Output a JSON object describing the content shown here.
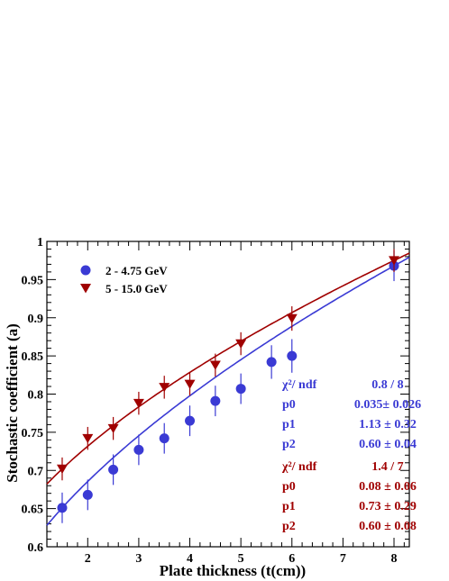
{
  "colors": {
    "series1": "#3a3ad4",
    "series2": "#a00000",
    "axis": "#000000"
  },
  "chart_data": {
    "type": "scatter",
    "title": "",
    "xlabel": "Plate thickness (t(cm))",
    "ylabel": "Stochastic coefficient (a)",
    "xlim": [
      1.2,
      8.3
    ],
    "ylim": [
      0.6,
      1.0
    ],
    "x_ticks": [
      2,
      3,
      4,
      5,
      6,
      7,
      8
    ],
    "y_ticks": [
      0.6,
      0.65,
      0.7,
      0.75,
      0.8,
      0.85,
      0.9,
      0.95,
      1
    ],
    "y_tick_labels": [
      "0.6",
      "0.65",
      "0.7",
      "0.75",
      "0.8",
      "0.85",
      "0.9",
      "0.95",
      "1"
    ],
    "legend_position": "top-left",
    "grid": false,
    "series": [
      {
        "name": "2 - 4.75 GeV",
        "marker": "circle",
        "color": "#3a3ad4",
        "x": [
          1.5,
          2.0,
          2.5,
          3.0,
          3.5,
          4.0,
          4.5,
          5.0,
          5.6,
          6.0,
          8.0
        ],
        "y": [
          0.651,
          0.668,
          0.701,
          0.727,
          0.742,
          0.765,
          0.791,
          0.807,
          0.842,
          0.85,
          0.968
        ],
        "err": [
          0.02,
          0.02,
          0.02,
          0.02,
          0.02,
          0.02,
          0.02,
          0.02,
          0.022,
          0.022,
          0.02
        ]
      },
      {
        "name": "5 - 15.0 GeV",
        "marker": "triangle-down",
        "color": "#a00000",
        "x": [
          1.5,
          2.0,
          2.5,
          3.0,
          3.5,
          4.0,
          4.5,
          5.0,
          6.0,
          8.0
        ],
        "y": [
          0.702,
          0.742,
          0.755,
          0.788,
          0.809,
          0.813,
          0.838,
          0.866,
          0.899,
          0.975
        ],
        "err": [
          0.015,
          0.015,
          0.015,
          0.015,
          0.015,
          0.015,
          0.015,
          0.015,
          0.016,
          0.015
        ]
      }
    ],
    "fits": [
      {
        "series": "2 - 4.75 GeV",
        "p0": 0.035,
        "p1": 1.13,
        "p2": 0.6,
        "x_range": [
          1.2,
          8.3
        ]
      },
      {
        "series": "5 - 15.0 GeV",
        "p0": 0.08,
        "p1": 0.73,
        "p2": 0.6,
        "x_range": [
          1.2,
          8.3
        ]
      }
    ]
  },
  "stats": [
    {
      "rows": [
        {
          "label": "χ²/ ndf",
          "value": "0.8 / 8"
        },
        {
          "label": "p0",
          "value": "0.035± 0.026"
        },
        {
          "label": "p1",
          "value": "1.13 ± 0.32"
        },
        {
          "label": "p2",
          "value": "0.60 ± 0.04"
        }
      ]
    },
    {
      "rows": [
        {
          "label": "χ²/ ndf",
          "value": "1.4 / 7"
        },
        {
          "label": "p0",
          "value": "0.08 ±  0.06"
        },
        {
          "label": "p1",
          "value": "0.73 ±  0.29"
        },
        {
          "label": "p2",
          "value": "0.60 ±  0.08"
        }
      ]
    }
  ]
}
